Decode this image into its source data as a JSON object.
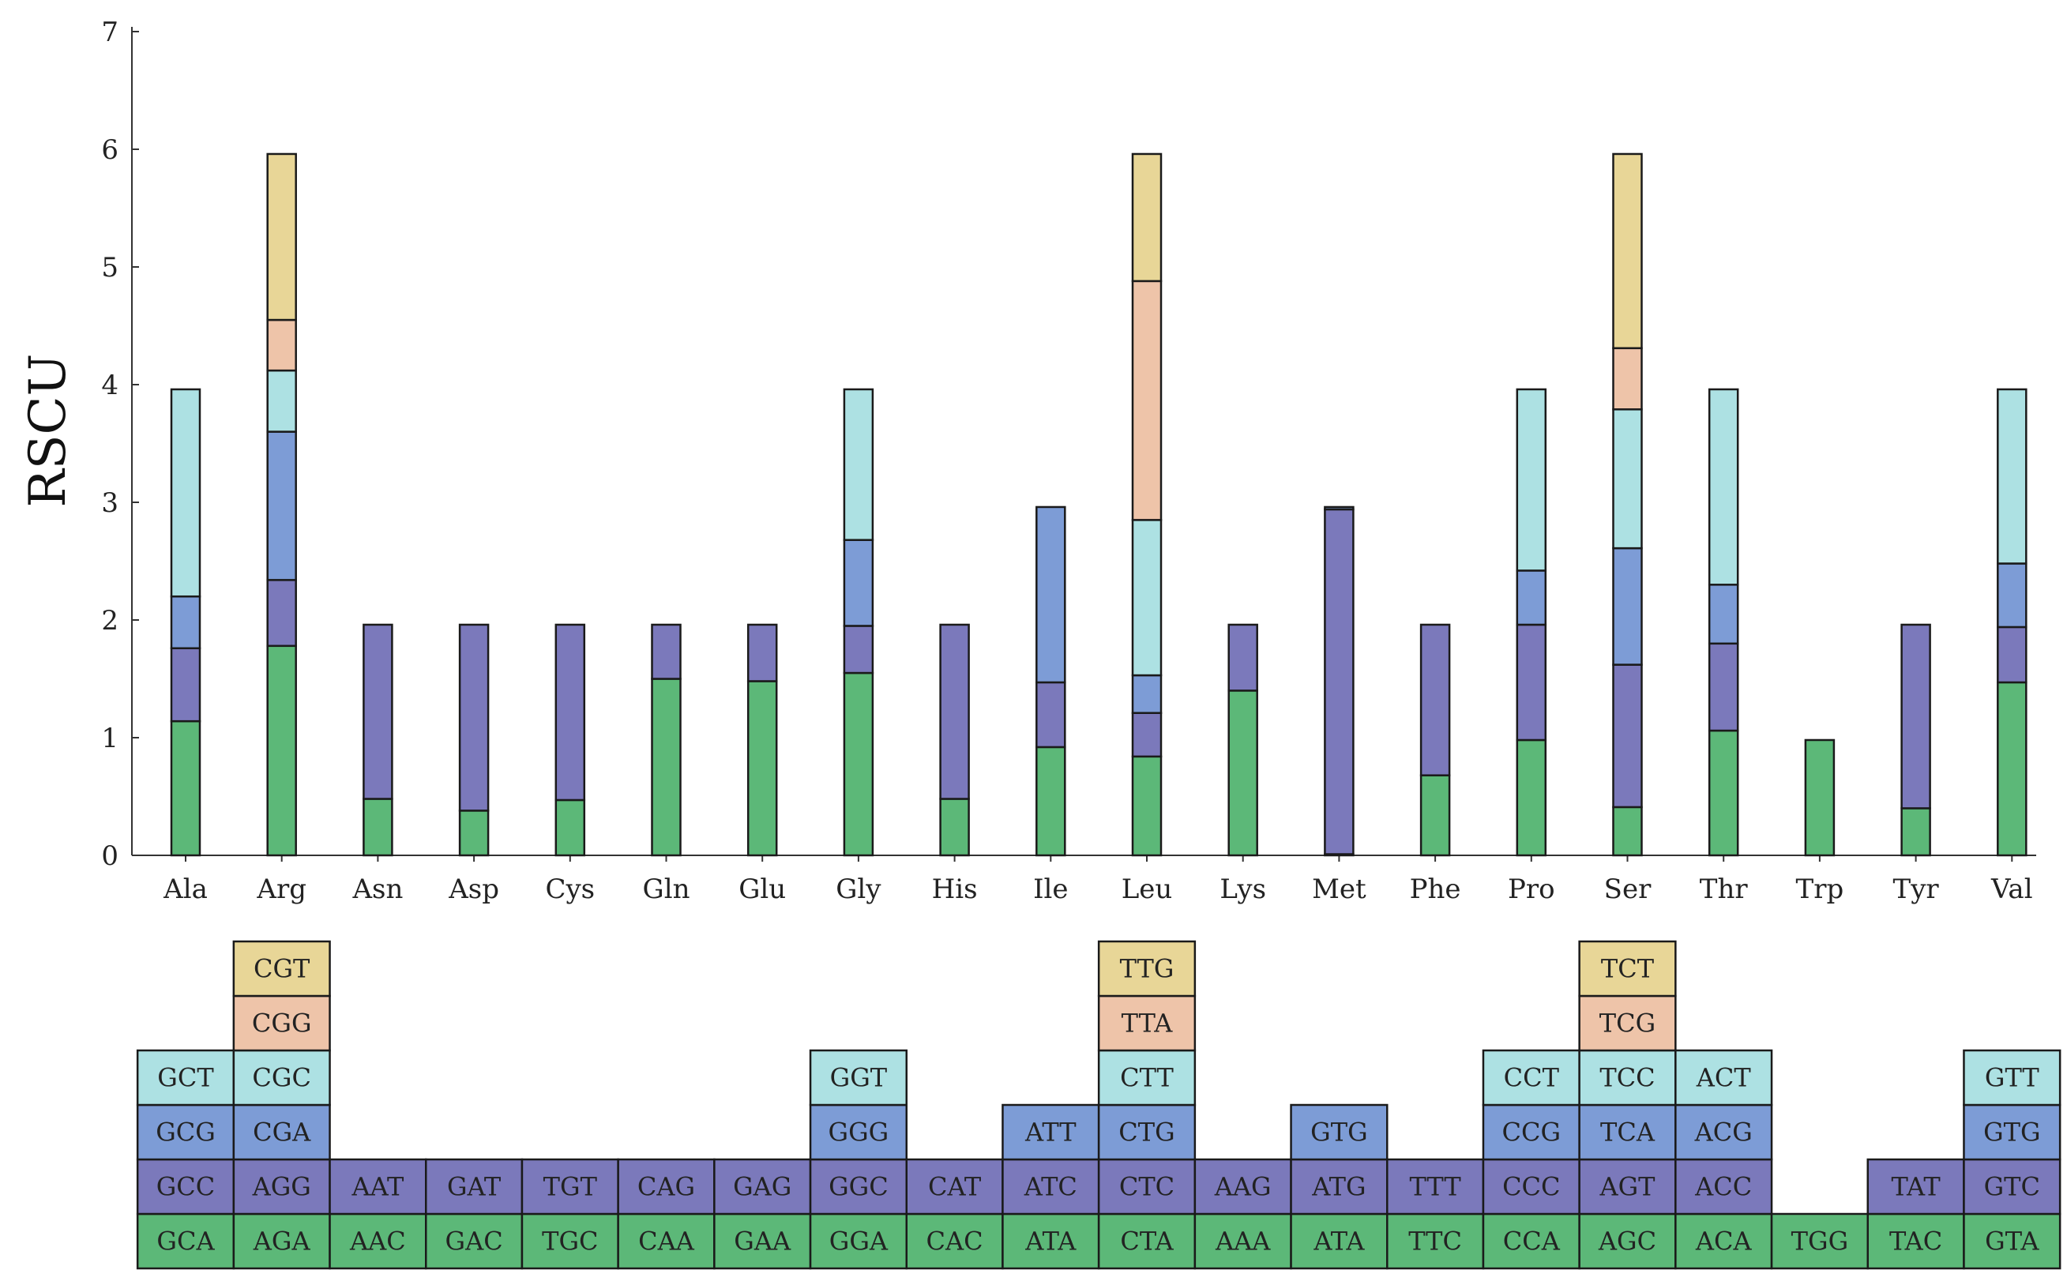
{
  "chart_data": {
    "type": "bar",
    "stacked": true,
    "ylabel": "RSCU",
    "xlabel": "",
    "title": "",
    "ylim": [
      0,
      7
    ],
    "yticks": [
      0,
      1,
      2,
      3,
      4,
      5,
      6,
      7
    ],
    "grid": false,
    "legend": "codon table below chart",
    "colors": [
      "#5cb878",
      "#7b79bb",
      "#7d9cd6",
      "#ade1e3",
      "#eec4a9",
      "#e8d697"
    ],
    "categories": [
      "Ala",
      "Arg",
      "Asn",
      "Asp",
      "Cys",
      "Gln",
      "Glu",
      "Gly",
      "His",
      "Ile",
      "Leu",
      "Lys",
      "Met",
      "Phe",
      "Pro",
      "Ser",
      "Thr",
      "Trp",
      "Tyr",
      "Val"
    ],
    "stacks": [
      {
        "aa": "Ala",
        "codons": [
          "GCA",
          "GCC",
          "GCG",
          "GCT"
        ],
        "values": [
          1.14,
          0.62,
          0.44,
          1.76
        ]
      },
      {
        "aa": "Arg",
        "codons": [
          "AGA",
          "AGG",
          "CGA",
          "CGC",
          "CGG",
          "CGT"
        ],
        "values": [
          1.78,
          0.56,
          1.26,
          0.52,
          0.43,
          1.41
        ]
      },
      {
        "aa": "Asn",
        "codons": [
          "AAC",
          "AAT"
        ],
        "values": [
          0.48,
          1.48
        ]
      },
      {
        "aa": "Asp",
        "codons": [
          "GAC",
          "GAT"
        ],
        "values": [
          0.38,
          1.58
        ]
      },
      {
        "aa": "Cys",
        "codons": [
          "TGC",
          "TGT"
        ],
        "values": [
          0.47,
          1.49
        ]
      },
      {
        "aa": "Gln",
        "codons": [
          "CAA",
          "CAG"
        ],
        "values": [
          1.5,
          0.46
        ]
      },
      {
        "aa": "Glu",
        "codons": [
          "GAA",
          "GAG"
        ],
        "values": [
          1.48,
          0.48
        ]
      },
      {
        "aa": "Gly",
        "codons": [
          "GGA",
          "GGC",
          "GGG",
          "GGT"
        ],
        "values": [
          1.55,
          0.4,
          0.73,
          1.28
        ]
      },
      {
        "aa": "His",
        "codons": [
          "CAC",
          "CAT"
        ],
        "values": [
          0.48,
          1.48
        ]
      },
      {
        "aa": "Ile",
        "codons": [
          "ATA",
          "ATC",
          "ATT"
        ],
        "values": [
          0.92,
          0.55,
          1.49
        ]
      },
      {
        "aa": "Leu",
        "codons": [
          "CTA",
          "CTC",
          "CTG",
          "CTT",
          "TTA",
          "TTG"
        ],
        "values": [
          0.84,
          0.37,
          0.32,
          1.32,
          2.03,
          1.08
        ]
      },
      {
        "aa": "Lys",
        "codons": [
          "AAA",
          "AAG"
        ],
        "values": [
          1.4,
          0.56
        ]
      },
      {
        "aa": "Met",
        "codons": [
          "ATA",
          "ATG",
          "GTG"
        ],
        "values": [
          0.01,
          2.93,
          0.02
        ]
      },
      {
        "aa": "Phe",
        "codons": [
          "TTC",
          "TTT"
        ],
        "values": [
          0.68,
          1.28
        ]
      },
      {
        "aa": "Pro",
        "codons": [
          "CCA",
          "CCC",
          "CCG",
          "CCT"
        ],
        "values": [
          0.98,
          0.98,
          0.46,
          1.54
        ]
      },
      {
        "aa": "Ser",
        "codons": [
          "AGC",
          "AGT",
          "TCA",
          "TCC",
          "TCG",
          "TCT"
        ],
        "values": [
          0.41,
          1.21,
          0.99,
          1.18,
          0.52,
          1.65
        ]
      },
      {
        "aa": "Thr",
        "codons": [
          "ACA",
          "ACC",
          "ACG",
          "ACT"
        ],
        "values": [
          1.06,
          0.74,
          0.5,
          1.66
        ]
      },
      {
        "aa": "Trp",
        "codons": [
          "TGG"
        ],
        "values": [
          0.98
        ]
      },
      {
        "aa": "Tyr",
        "codons": [
          "TAC",
          "TAT"
        ],
        "values": [
          0.4,
          1.56
        ]
      },
      {
        "aa": "Val",
        "codons": [
          "GTA",
          "GTC",
          "GTG",
          "GTT"
        ],
        "values": [
          1.47,
          0.47,
          0.54,
          1.48
        ]
      }
    ]
  }
}
